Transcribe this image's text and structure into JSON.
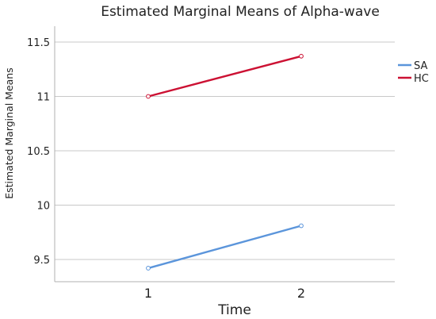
{
  "chart_data": {
    "type": "line",
    "title": "Estimated Marginal Means of Alpha-wave",
    "xlabel": "Time",
    "ylabel": "Estimated Marginal Means",
    "categories": [
      "1",
      "2"
    ],
    "yticks": [
      "9.5",
      "10",
      "10.5",
      "11",
      "11.5"
    ],
    "ylim": [
      9.3,
      11.6
    ],
    "grid": true,
    "legend_position": "right",
    "series": [
      {
        "name": "SA",
        "values": [
          9.42,
          9.81
        ],
        "color": "#5b95db"
      },
      {
        "name": "HC",
        "values": [
          11.0,
          11.37
        ],
        "color": "#cc1133"
      }
    ]
  }
}
